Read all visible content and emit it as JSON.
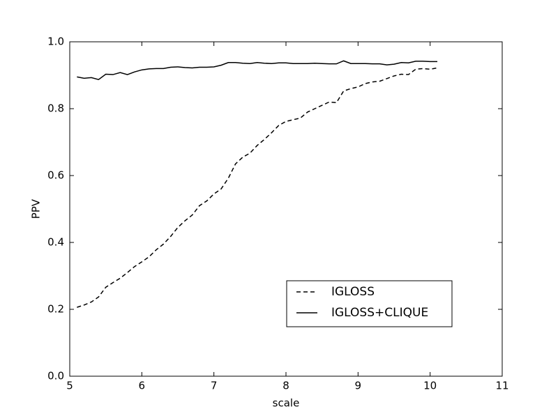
{
  "chart_data": {
    "type": "line",
    "xlabel": "scale",
    "ylabel": "PPV",
    "x": [
      5.1,
      5.2,
      5.3,
      5.4,
      5.5,
      5.6,
      5.7,
      5.8,
      5.9,
      6.0,
      6.1,
      6.2,
      6.3,
      6.4,
      6.5,
      6.6,
      6.7,
      6.8,
      6.9,
      7.0,
      7.1,
      7.2,
      7.3,
      7.4,
      7.5,
      7.6,
      7.7,
      7.8,
      7.9,
      8.0,
      8.1,
      8.2,
      8.3,
      8.4,
      8.5,
      8.6,
      8.7,
      8.8,
      8.9,
      9.0,
      9.1,
      9.2,
      9.3,
      9.4,
      9.5,
      9.6,
      9.7,
      9.8,
      9.9,
      10.0,
      10.1
    ],
    "series": [
      {
        "name": "IGLOSS",
        "color": "#000000",
        "linestyle": "dashed",
        "values": [
          0.206,
          0.213,
          0.222,
          0.237,
          0.266,
          0.28,
          0.293,
          0.31,
          0.328,
          0.342,
          0.357,
          0.378,
          0.395,
          0.418,
          0.445,
          0.465,
          0.482,
          0.51,
          0.524,
          0.545,
          0.56,
          0.592,
          0.635,
          0.655,
          0.667,
          0.69,
          0.708,
          0.728,
          0.75,
          0.762,
          0.767,
          0.772,
          0.79,
          0.8,
          0.81,
          0.82,
          0.818,
          0.853,
          0.86,
          0.865,
          0.875,
          0.88,
          0.882,
          0.89,
          0.898,
          0.903,
          0.902,
          0.918,
          0.92,
          0.918,
          0.922
        ]
      },
      {
        "name": "IGLOSS+CLIQUE",
        "color": "#000000",
        "linestyle": "solid",
        "values": [
          0.895,
          0.891,
          0.893,
          0.887,
          0.903,
          0.902,
          0.908,
          0.902,
          0.91,
          0.916,
          0.919,
          0.92,
          0.92,
          0.924,
          0.925,
          0.923,
          0.922,
          0.924,
          0.924,
          0.925,
          0.93,
          0.938,
          0.938,
          0.936,
          0.935,
          0.938,
          0.936,
          0.935,
          0.937,
          0.937,
          0.935,
          0.935,
          0.935,
          0.936,
          0.935,
          0.934,
          0.934,
          0.943,
          0.935,
          0.935,
          0.935,
          0.934,
          0.934,
          0.931,
          0.933,
          0.938,
          0.937,
          0.942,
          0.942,
          0.941,
          0.941
        ]
      }
    ],
    "xlim": [
      5,
      11
    ],
    "xticks": [
      5,
      6,
      7,
      8,
      9,
      10,
      11
    ],
    "ylim": [
      0,
      1
    ],
    "yticks": [
      {
        "value": 0,
        "label": "0.0"
      },
      0.2,
      0.4,
      0.6,
      0.8,
      {
        "value": 1,
        "label": "1.0"
      }
    ],
    "grid": false,
    "legend": "lower right"
  }
}
